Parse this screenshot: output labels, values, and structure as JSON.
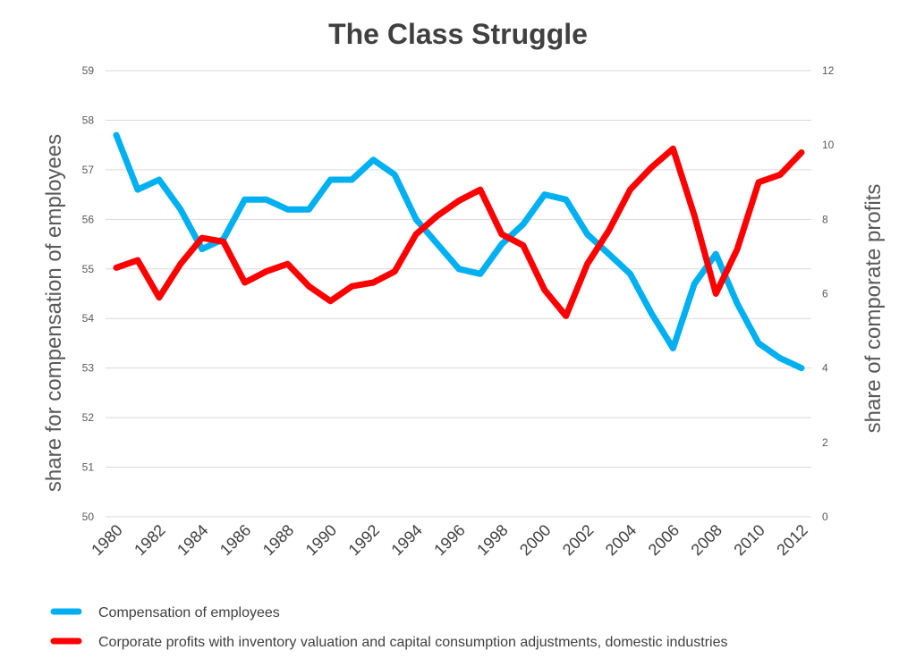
{
  "chart_data": {
    "type": "line",
    "title": "The Class Struggle",
    "x": [
      1980,
      1981,
      1982,
      1983,
      1984,
      1985,
      1986,
      1987,
      1988,
      1989,
      1990,
      1991,
      1992,
      1993,
      1994,
      1995,
      1996,
      1997,
      1998,
      1999,
      2000,
      2001,
      2002,
      2003,
      2004,
      2005,
      2006,
      2007,
      2008,
      2009,
      2010,
      2011,
      2012
    ],
    "x_tick_labels": [
      "1980",
      "1982",
      "1984",
      "1986",
      "1988",
      "1990",
      "1992",
      "1994",
      "1996",
      "1998",
      "2000",
      "2002",
      "2004",
      "2006",
      "2008",
      "2010",
      "2012"
    ],
    "ylabel_left": "share for compensation of employees",
    "ylabel_right": "share of comporate profits",
    "ylim_left": [
      50,
      59
    ],
    "ylim_right": [
      0,
      12
    ],
    "y_ticks_left": [
      "59",
      "58",
      "57",
      "56",
      "55",
      "54",
      "53",
      "52",
      "51",
      "50"
    ],
    "y_ticks_right": [
      "12",
      "10",
      "8",
      "6",
      "4",
      "2",
      "0"
    ],
    "grid": true,
    "legend_position": "bottom",
    "series": [
      {
        "name": "Compensation of employees",
        "axis": "left",
        "color": "#00b0f0",
        "values": [
          57.7,
          56.6,
          56.8,
          56.2,
          55.4,
          55.6,
          56.4,
          56.4,
          56.2,
          56.2,
          56.8,
          56.8,
          57.2,
          56.9,
          56.0,
          55.5,
          55.0,
          54.9,
          55.5,
          55.9,
          56.5,
          56.4,
          55.7,
          55.3,
          54.9,
          54.1,
          53.4,
          54.7,
          55.3,
          54.3,
          53.5,
          53.2,
          53.0
        ]
      },
      {
        "name": "Corporate profits with inventory valuation and capital consumption adjustments, domestic industries",
        "axis": "right",
        "color": "#ff0000",
        "values": [
          6.7,
          6.9,
          5.9,
          6.8,
          7.5,
          7.4,
          6.3,
          6.6,
          6.8,
          6.2,
          5.8,
          6.2,
          6.3,
          6.6,
          7.6,
          8.1,
          8.5,
          8.8,
          7.6,
          7.3,
          6.1,
          5.4,
          6.8,
          7.7,
          8.8,
          9.4,
          9.9,
          8.1,
          6.0,
          7.2,
          9.0,
          9.2,
          9.8
        ]
      }
    ]
  }
}
